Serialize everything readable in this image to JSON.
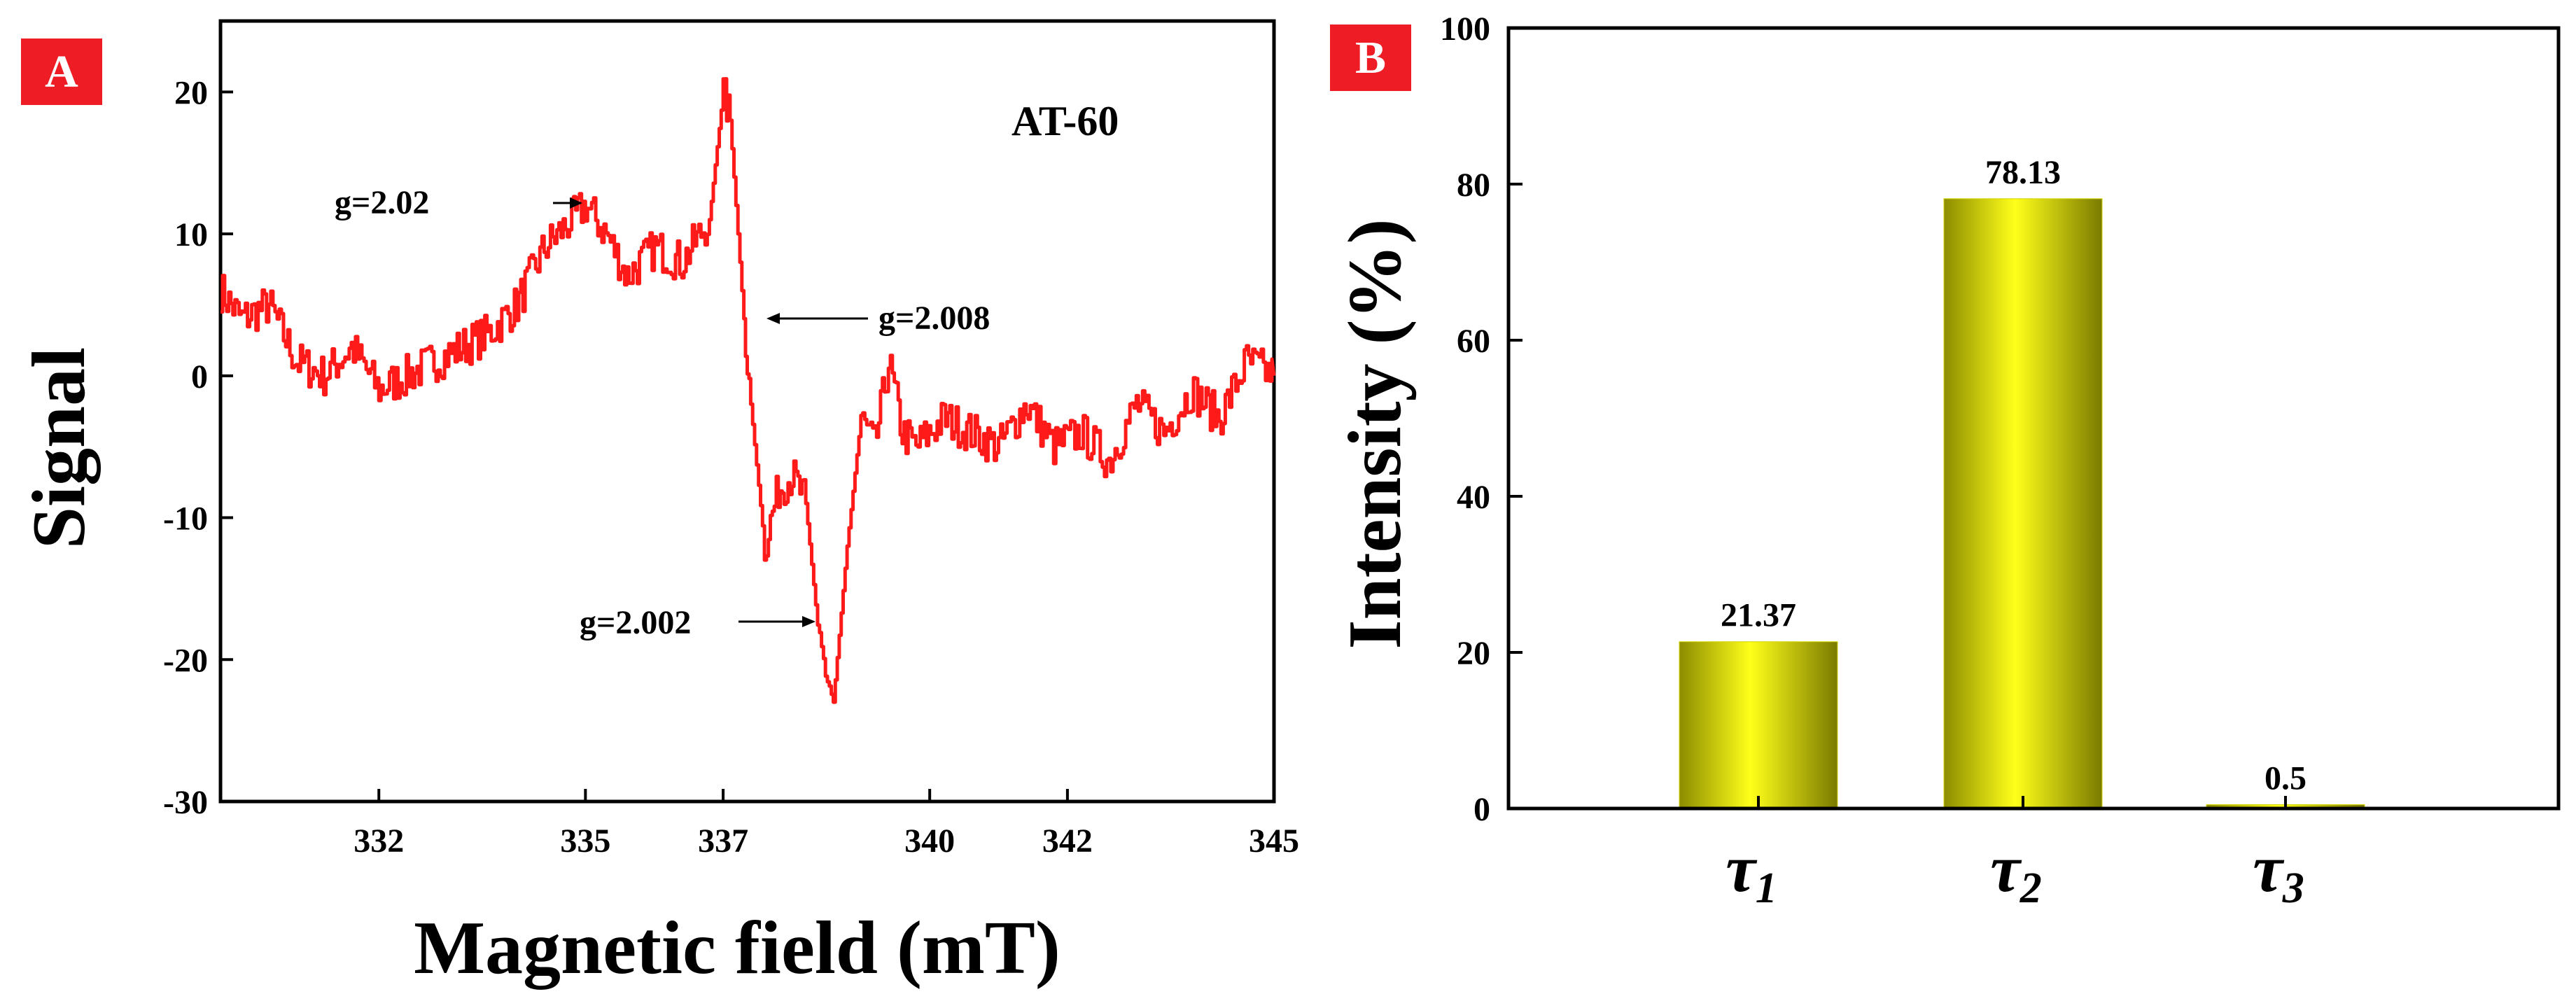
{
  "figure": {
    "panel_a_label": "A",
    "panel_b_label": "B",
    "label_color": "#ee1c25"
  },
  "chart_data": [
    {
      "panel": "A",
      "type": "line",
      "title": "AT-60",
      "xlabel": "Magnetic field (mT)",
      "ylabel": "Signal",
      "xlim": [
        329.7,
        345
      ],
      "ylim": [
        -30,
        25
      ],
      "xticks": [
        332,
        335,
        337,
        340,
        342,
        345
      ],
      "yticks": [
        -30,
        -20,
        -10,
        0,
        10,
        20
      ],
      "color": "#ff1a1a",
      "series": [
        {
          "name": "AT-60",
          "x": [
            329.7,
            330.0,
            330.4,
            330.8,
            331.2,
            331.6,
            332.0,
            332.4,
            332.8,
            333.2,
            333.6,
            334.0,
            334.4,
            334.8,
            335.0,
            335.3,
            335.6,
            336.0,
            336.4,
            336.8,
            337.0,
            337.1,
            337.3,
            337.4,
            337.6,
            337.8,
            338.0,
            338.2,
            338.4,
            338.6,
            338.8,
            339.0,
            339.2,
            339.4,
            339.6,
            339.8,
            340.2,
            340.6,
            341.0,
            341.4,
            341.8,
            342.2,
            342.6,
            343.0,
            343.4,
            343.8,
            344.2,
            344.6,
            345.0
          ],
          "y": [
            6,
            4,
            5,
            1,
            0,
            2,
            -1,
            0,
            1,
            2,
            3,
            5,
            9,
            11,
            12,
            10,
            7,
            9,
            8,
            11,
            20,
            18,
            4,
            -2,
            -12,
            -8,
            -7,
            -9,
            -19,
            -23,
            -12,
            -3,
            -5,
            1,
            -4,
            -5,
            -3,
            -4,
            -5,
            -2,
            -5,
            -4,
            -6,
            -2,
            -4,
            -1,
            -3,
            1,
            0
          ]
        }
      ],
      "annotations": [
        "g=2.02",
        "g=2.008",
        "g=2.002"
      ]
    },
    {
      "panel": "B",
      "type": "bar",
      "xlabel": "",
      "ylabel": "Intensity (%)",
      "ylim": [
        0,
        100
      ],
      "yticks": [
        0,
        20,
        40,
        60,
        80,
        100
      ],
      "categories": [
        "τ1",
        "τ2",
        "τ3"
      ],
      "category_symbol": "τ",
      "category_subscripts": [
        "1",
        "2",
        "3"
      ],
      "values": [
        21.37,
        78.13,
        0.5
      ],
      "value_labels": [
        "21.37",
        "78.13",
        "0.5"
      ],
      "bar_color": "#d4d400"
    }
  ]
}
